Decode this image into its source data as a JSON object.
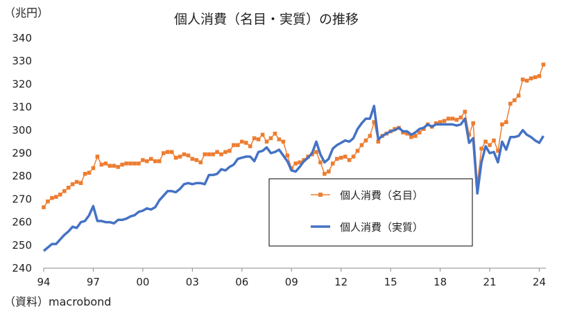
{
  "chart_data": {
    "type": "line",
    "title": "個人消費（名目・実質）の推移",
    "unit_label": "（兆円）",
    "source_note": "（資料）macrobond",
    "ylim": [
      240,
      340
    ],
    "y_ticks": [
      240,
      250,
      260,
      270,
      280,
      290,
      300,
      310,
      320,
      330,
      340
    ],
    "xlim": [
      1994,
      2024.4
    ],
    "x_ticks": [
      {
        "label": "94",
        "year": 1994
      },
      {
        "label": "97",
        "year": 1997
      },
      {
        "label": "00",
        "year": 2000
      },
      {
        "label": "03",
        "year": 2003
      },
      {
        "label": "06",
        "year": 2006
      },
      {
        "label": "09",
        "year": 2009
      },
      {
        "label": "12",
        "year": 2012
      },
      {
        "label": "15",
        "year": 2015
      },
      {
        "label": "18",
        "year": 2018
      },
      {
        "label": "21",
        "year": 2021
      },
      {
        "label": "24",
        "year": 2024
      }
    ],
    "grid": false,
    "legend_position": "center-right",
    "series": [
      {
        "name": "個人消費（名目）",
        "color": "#ED7D31",
        "marker": "square",
        "points": [
          [
            1994.0,
            266.5
          ],
          [
            1994.25,
            269
          ],
          [
            1994.5,
            270.5
          ],
          [
            1994.75,
            271
          ],
          [
            1995.0,
            272
          ],
          [
            1995.25,
            273.5
          ],
          [
            1995.5,
            275
          ],
          [
            1995.75,
            276.5
          ],
          [
            1996.0,
            277.5
          ],
          [
            1996.25,
            277
          ],
          [
            1996.5,
            281
          ],
          [
            1996.75,
            281.5
          ],
          [
            1997.0,
            283.5
          ],
          [
            1997.25,
            288.5
          ],
          [
            1997.5,
            285
          ],
          [
            1997.75,
            285.5
          ],
          [
            1998.0,
            284.5
          ],
          [
            1998.25,
            284.5
          ],
          [
            1998.5,
            284
          ],
          [
            1998.75,
            285
          ],
          [
            1999.0,
            285.5
          ],
          [
            1999.25,
            285.5
          ],
          [
            1999.5,
            285.5
          ],
          [
            1999.75,
            285.5
          ],
          [
            2000.0,
            287
          ],
          [
            2000.25,
            286.5
          ],
          [
            2000.5,
            287.5
          ],
          [
            2000.75,
            286.5
          ],
          [
            2001.0,
            286.5
          ],
          [
            2001.25,
            290
          ],
          [
            2001.5,
            290.5
          ],
          [
            2001.75,
            290.5
          ],
          [
            2002.0,
            288
          ],
          [
            2002.25,
            288.5
          ],
          [
            2002.5,
            289.5
          ],
          [
            2002.75,
            289
          ],
          [
            2003.0,
            287.5
          ],
          [
            2003.25,
            287
          ],
          [
            2003.5,
            286
          ],
          [
            2003.75,
            289.5
          ],
          [
            2004.0,
            289.5
          ],
          [
            2004.25,
            289.5
          ],
          [
            2004.5,
            290.5
          ],
          [
            2004.75,
            289.5
          ],
          [
            2005.0,
            290.5
          ],
          [
            2005.25,
            291
          ],
          [
            2005.5,
            293.5
          ],
          [
            2005.75,
            293.5
          ],
          [
            2006.0,
            295
          ],
          [
            2006.25,
            294.5
          ],
          [
            2006.5,
            293
          ],
          [
            2006.75,
            296.5
          ],
          [
            2007.0,
            296
          ],
          [
            2007.25,
            298
          ],
          [
            2007.5,
            295
          ],
          [
            2007.75,
            296.5
          ],
          [
            2008.0,
            298.5
          ],
          [
            2008.25,
            296
          ],
          [
            2008.5,
            295
          ],
          [
            2008.75,
            289
          ],
          [
            2009.0,
            283.5
          ],
          [
            2009.25,
            285.5
          ],
          [
            2009.5,
            286
          ],
          [
            2009.75,
            287
          ],
          [
            2010.0,
            288.5
          ],
          [
            2010.25,
            289.5
          ],
          [
            2010.5,
            290.5
          ],
          [
            2010.75,
            286
          ],
          [
            2011.0,
            281
          ],
          [
            2011.25,
            282
          ],
          [
            2011.5,
            285.5
          ],
          [
            2011.75,
            287.5
          ],
          [
            2012.0,
            288
          ],
          [
            2012.25,
            288.5
          ],
          [
            2012.5,
            287
          ],
          [
            2012.75,
            288.5
          ],
          [
            2013.0,
            291
          ],
          [
            2013.25,
            293.5
          ],
          [
            2013.5,
            295.5
          ],
          [
            2013.75,
            297.5
          ],
          [
            2014.0,
            303.5
          ],
          [
            2014.25,
            295
          ],
          [
            2014.5,
            297.5
          ],
          [
            2014.75,
            298.5
          ],
          [
            2015.0,
            299.5
          ],
          [
            2015.25,
            300.5
          ],
          [
            2015.5,
            301
          ],
          [
            2015.75,
            299
          ],
          [
            2016.0,
            298.5
          ],
          [
            2016.25,
            297
          ],
          [
            2016.5,
            297.5
          ],
          [
            2016.75,
            299
          ],
          [
            2017.0,
            300.5
          ],
          [
            2017.25,
            302.5
          ],
          [
            2017.5,
            301.5
          ],
          [
            2017.75,
            303
          ],
          [
            2018.0,
            303.5
          ],
          [
            2018.25,
            304
          ],
          [
            2018.5,
            305
          ],
          [
            2018.75,
            305
          ],
          [
            2019.0,
            304.5
          ],
          [
            2019.25,
            305.5
          ],
          [
            2019.5,
            308
          ],
          [
            2019.75,
            298
          ],
          [
            2020.0,
            303
          ],
          [
            2020.25,
            277
          ],
          [
            2020.5,
            292
          ],
          [
            2020.75,
            295
          ],
          [
            2021.0,
            293.5
          ],
          [
            2021.25,
            295.5
          ],
          [
            2021.5,
            291
          ],
          [
            2021.75,
            302.5
          ],
          [
            2022.0,
            303.5
          ],
          [
            2022.25,
            311.5
          ],
          [
            2022.5,
            313
          ],
          [
            2022.75,
            315
          ],
          [
            2023.0,
            322
          ],
          [
            2023.25,
            321.5
          ],
          [
            2023.5,
            322.5
          ],
          [
            2023.75,
            323
          ],
          [
            2024.0,
            323.5
          ],
          [
            2024.25,
            328.5
          ]
        ]
      },
      {
        "name": "個人消費（実質）",
        "color": "#4472C4",
        "marker": "none",
        "points": [
          [
            1994.0,
            247.5
          ],
          [
            1994.25,
            249
          ],
          [
            1994.5,
            250.5
          ],
          [
            1994.75,
            250.5
          ],
          [
            1995.0,
            252.5
          ],
          [
            1995.25,
            254.5
          ],
          [
            1995.5,
            256
          ],
          [
            1995.75,
            258
          ],
          [
            1996.0,
            257.5
          ],
          [
            1996.25,
            260
          ],
          [
            1996.5,
            260.5
          ],
          [
            1996.75,
            263
          ],
          [
            1997.0,
            267
          ],
          [
            1997.25,
            260.5
          ],
          [
            1997.5,
            260.5
          ],
          [
            1997.75,
            260
          ],
          [
            1998.0,
            260
          ],
          [
            1998.25,
            259.5
          ],
          [
            1998.5,
            261
          ],
          [
            1998.75,
            261
          ],
          [
            1999.0,
            261.5
          ],
          [
            1999.25,
            262.5
          ],
          [
            1999.5,
            263
          ],
          [
            1999.75,
            264.5
          ],
          [
            2000.0,
            265
          ],
          [
            2000.25,
            266
          ],
          [
            2000.5,
            265.5
          ],
          [
            2000.75,
            266.5
          ],
          [
            2001.0,
            269.5
          ],
          [
            2001.25,
            271.5
          ],
          [
            2001.5,
            273.5
          ],
          [
            2001.75,
            273.5
          ],
          [
            2002.0,
            273
          ],
          [
            2002.25,
            274.5
          ],
          [
            2002.5,
            276.5
          ],
          [
            2002.75,
            277
          ],
          [
            2003.0,
            276.5
          ],
          [
            2003.25,
            277
          ],
          [
            2003.5,
            277
          ],
          [
            2003.75,
            276.5
          ],
          [
            2004.0,
            280.5
          ],
          [
            2004.25,
            280.5
          ],
          [
            2004.5,
            281
          ],
          [
            2004.75,
            283
          ],
          [
            2005.0,
            282.5
          ],
          [
            2005.25,
            284
          ],
          [
            2005.5,
            285
          ],
          [
            2005.75,
            287.5
          ],
          [
            2006.0,
            288
          ],
          [
            2006.25,
            288.5
          ],
          [
            2006.5,
            288.5
          ],
          [
            2006.75,
            286.5
          ],
          [
            2007.0,
            290.5
          ],
          [
            2007.25,
            291
          ],
          [
            2007.5,
            292.5
          ],
          [
            2007.75,
            290
          ],
          [
            2008.0,
            290.5
          ],
          [
            2008.25,
            291.5
          ],
          [
            2008.5,
            289
          ],
          [
            2008.75,
            286.5
          ],
          [
            2009.0,
            282.5
          ],
          [
            2009.25,
            282
          ],
          [
            2009.5,
            284
          ],
          [
            2009.75,
            286.5
          ],
          [
            2010.0,
            288
          ],
          [
            2010.25,
            290
          ],
          [
            2010.5,
            295
          ],
          [
            2010.75,
            289.5
          ],
          [
            2011.0,
            286
          ],
          [
            2011.25,
            287.5
          ],
          [
            2011.5,
            292
          ],
          [
            2011.75,
            293.5
          ],
          [
            2012.0,
            294.5
          ],
          [
            2012.25,
            295.5
          ],
          [
            2012.5,
            295
          ],
          [
            2012.75,
            296.5
          ],
          [
            2013.0,
            300.5
          ],
          [
            2013.25,
            303
          ],
          [
            2013.5,
            305
          ],
          [
            2013.75,
            305
          ],
          [
            2014.0,
            310.5
          ],
          [
            2014.25,
            296
          ],
          [
            2014.5,
            297.5
          ],
          [
            2014.75,
            298.5
          ],
          [
            2015.0,
            299.5
          ],
          [
            2015.25,
            300
          ],
          [
            2015.5,
            301
          ],
          [
            2015.75,
            299.5
          ],
          [
            2016.0,
            299.5
          ],
          [
            2016.25,
            298
          ],
          [
            2016.5,
            299
          ],
          [
            2016.75,
            300.5
          ],
          [
            2017.0,
            301
          ],
          [
            2017.25,
            302.5
          ],
          [
            2017.5,
            301.5
          ],
          [
            2017.75,
            302.5
          ],
          [
            2018.0,
            302.5
          ],
          [
            2018.25,
            302.5
          ],
          [
            2018.5,
            302.5
          ],
          [
            2018.75,
            302.5
          ],
          [
            2019.0,
            302
          ],
          [
            2019.25,
            302.5
          ],
          [
            2019.5,
            305
          ],
          [
            2019.75,
            294.5
          ],
          [
            2020.0,
            296.5
          ],
          [
            2020.25,
            272.5
          ],
          [
            2020.5,
            286
          ],
          [
            2020.75,
            293
          ],
          [
            2021.0,
            290
          ],
          [
            2021.25,
            290.5
          ],
          [
            2021.5,
            286
          ],
          [
            2021.75,
            295
          ],
          [
            2022.0,
            291.5
          ],
          [
            2022.25,
            297
          ],
          [
            2022.5,
            297
          ],
          [
            2022.75,
            297.5
          ],
          [
            2023.0,
            300
          ],
          [
            2023.25,
            298
          ],
          [
            2023.5,
            297
          ],
          [
            2023.75,
            295.5
          ],
          [
            2024.0,
            294.5
          ],
          [
            2024.25,
            297.5
          ]
        ]
      }
    ]
  }
}
